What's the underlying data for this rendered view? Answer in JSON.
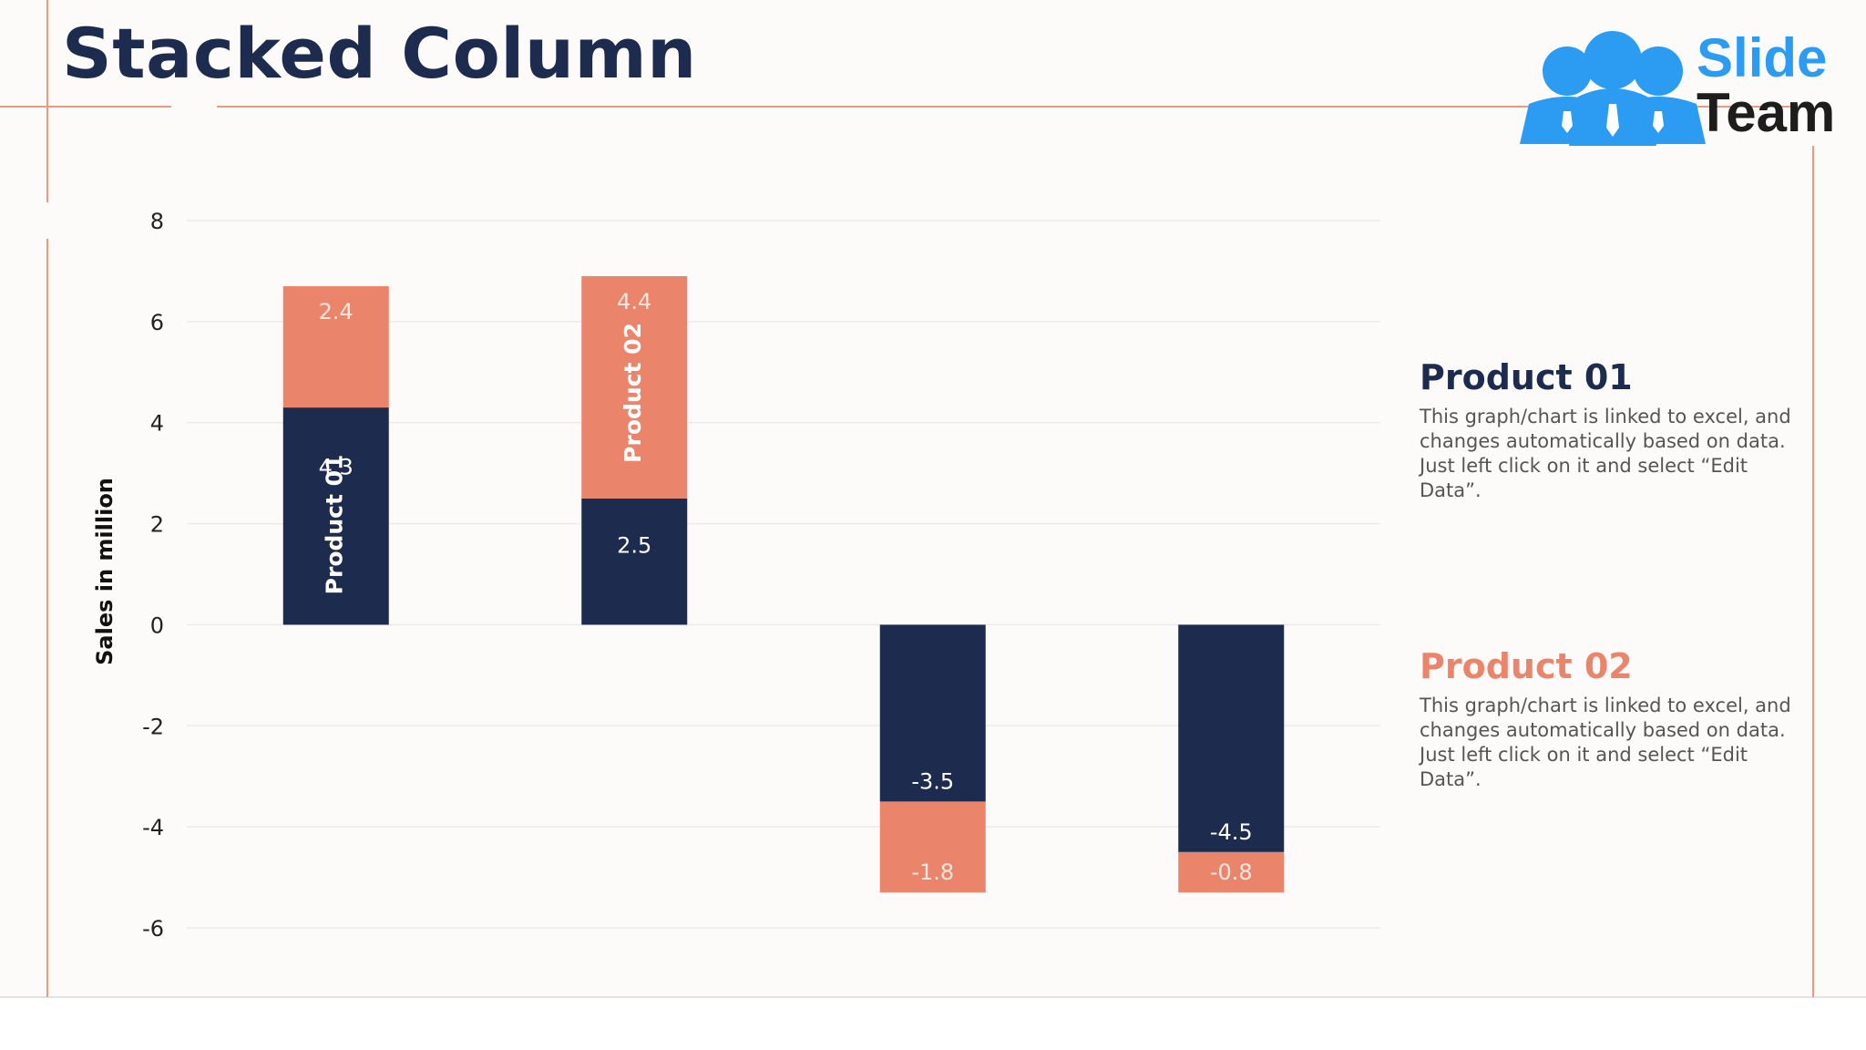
{
  "title": "Stacked Column",
  "logo": {
    "line1": "Slide",
    "line2": "Team"
  },
  "colors": {
    "navy": "#1d2b4e",
    "salmon": "#ea846a",
    "accent_line": "#ec9b82",
    "logo_blue": "#2b9cf2"
  },
  "chart_data": {
    "type": "bar",
    "stacked": true,
    "categories": [
      "",
      "",
      "",
      ""
    ],
    "ylabel": "Sales in million",
    "ylim": [
      -6,
      8
    ],
    "yticks": [
      "8",
      "6",
      "4",
      "2",
      "0",
      "-2",
      "-4",
      "-6"
    ],
    "grid": true,
    "series": [
      {
        "name": "Product 01",
        "color": "#1d2b4e",
        "values": [
          4.3,
          2.5,
          -3.5,
          -4.5
        ],
        "labels": [
          "4.3",
          "2.5",
          "-3.5",
          "-4.5"
        ]
      },
      {
        "name": "Product 02",
        "color": "#ea846a",
        "values": [
          2.4,
          4.4,
          -1.8,
          -0.8
        ],
        "labels": [
          "2.4",
          "4.4",
          "-1.8",
          "-0.8"
        ]
      }
    ],
    "in_bar_labels": [
      "Product 01",
      "Product 02"
    ]
  },
  "descriptions": [
    {
      "title": "Product 01",
      "color": "#1d2b4e",
      "text": "This graph/chart is linked to excel, and changes automatically based on data. Just left click on it and select “Edit Data”."
    },
    {
      "title": "Product 02",
      "color": "#ea846a",
      "text": "This graph/chart is linked to excel, and changes automatically based on data. Just left click on it and select “Edit Data”."
    }
  ]
}
